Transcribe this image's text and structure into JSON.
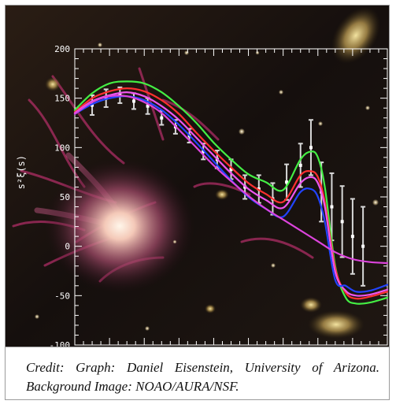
{
  "caption": {
    "text": "Credit: Graph: Daniel Eisenstein, University of Arizona. Background Image: NOAO/AURA/NSF."
  },
  "background": {
    "description": "galaxy field with pink nebula filaments"
  },
  "chart_data": {
    "type": "line",
    "title": "",
    "xlabel": "",
    "ylabel": "s²ξ(s)",
    "ylim": [
      -100,
      200
    ],
    "xlim": [
      0,
      9
    ],
    "grid": false,
    "y_ticks": [
      -100,
      -50,
      0,
      50,
      100,
      150,
      200
    ],
    "x_minor_ticks_count": 36,
    "series": [
      {
        "color": "#44ee44",
        "x": [
          0.0,
          0.5,
          1.0,
          1.5,
          2.0,
          2.5,
          3.0,
          3.5,
          4.0,
          4.5,
          5.0,
          5.5,
          6.0,
          6.5,
          6.8,
          7.0,
          7.2,
          7.5,
          7.8,
          8.1,
          8.5,
          9.0
        ],
        "values": [
          138,
          155,
          165,
          167,
          165,
          156,
          142,
          125,
          105,
          88,
          73,
          65,
          57,
          88,
          96,
          90,
          60,
          -20,
          -52,
          -58,
          -57,
          -52
        ]
      },
      {
        "color": "#ff3030",
        "x": [
          0.0,
          0.5,
          1.0,
          1.5,
          2.0,
          2.5,
          3.0,
          3.5,
          4.0,
          4.5,
          5.0,
          5.5,
          6.0,
          6.5,
          6.8,
          7.0,
          7.2,
          7.5,
          7.8,
          8.1,
          8.5,
          9.0
        ],
        "values": [
          136,
          150,
          157,
          160,
          157,
          148,
          134,
          115,
          97,
          80,
          64,
          53,
          45,
          72,
          76,
          70,
          45,
          -22,
          -47,
          -53,
          -51,
          -46
        ]
      },
      {
        "color": "#ee55ee",
        "x": [
          0.0,
          0.5,
          1.0,
          1.5,
          2.0,
          2.5,
          3.0,
          3.5,
          4.0,
          4.5,
          5.0,
          5.5,
          6.0,
          6.5,
          6.8,
          7.0,
          7.2,
          7.5,
          7.8,
          8.1,
          8.5,
          9.0
        ],
        "values": [
          135,
          147,
          153,
          156,
          152,
          142,
          128,
          110,
          92,
          74,
          58,
          47,
          39,
          64,
          70,
          64,
          40,
          -26,
          -45,
          -50,
          -49,
          -44
        ]
      },
      {
        "color": "#2244ff",
        "x": [
          0.0,
          0.5,
          1.0,
          1.5,
          2.0,
          2.5,
          3.0,
          3.5,
          4.0,
          4.5,
          5.0,
          5.5,
          6.0,
          6.5,
          6.8,
          7.0,
          7.2,
          7.5,
          7.8,
          8.1,
          8.5,
          9.0
        ],
        "values": [
          134,
          144,
          150,
          152,
          148,
          138,
          123,
          105,
          86,
          67,
          50,
          38,
          30,
          55,
          58,
          50,
          25,
          -34,
          -40,
          -46,
          -45,
          -39
        ]
      },
      {
        "color": "#dd44dd",
        "x": [
          0.0,
          0.5,
          1.0,
          1.5,
          2.0,
          2.5,
          3.0,
          3.5,
          4.0,
          4.5,
          5.0,
          5.5,
          6.0,
          6.5,
          7.0,
          7.5,
          8.0,
          8.5,
          9.0
        ],
        "values": [
          134,
          146,
          152,
          152,
          146,
          135,
          118,
          100,
          82,
          66,
          51,
          38,
          27,
          16,
          5,
          -6,
          -13,
          -16,
          -17
        ]
      }
    ],
    "error_points": [
      {
        "x": 0.5,
        "y": 143,
        "err": 10
      },
      {
        "x": 0.9,
        "y": 150,
        "err": 9
      },
      {
        "x": 1.3,
        "y": 153,
        "err": 8
      },
      {
        "x": 1.7,
        "y": 147,
        "err": 8
      },
      {
        "x": 2.1,
        "y": 142,
        "err": 8
      },
      {
        "x": 2.5,
        "y": 130,
        "err": 7
      },
      {
        "x": 2.9,
        "y": 121,
        "err": 7
      },
      {
        "x": 3.3,
        "y": 112,
        "err": 7
      },
      {
        "x": 3.7,
        "y": 96,
        "err": 8
      },
      {
        "x": 4.1,
        "y": 88,
        "err": 9
      },
      {
        "x": 4.5,
        "y": 78,
        "err": 10
      },
      {
        "x": 4.9,
        "y": 60,
        "err": 12
      },
      {
        "x": 5.3,
        "y": 58,
        "err": 14
      },
      {
        "x": 5.7,
        "y": 48,
        "err": 16
      },
      {
        "x": 6.1,
        "y": 65,
        "err": 18
      },
      {
        "x": 6.5,
        "y": 82,
        "err": 22
      },
      {
        "x": 6.8,
        "y": 100,
        "err": 28
      },
      {
        "x": 7.1,
        "y": 55,
        "err": 30
      },
      {
        "x": 7.4,
        "y": 40,
        "err": 34
      },
      {
        "x": 7.7,
        "y": 25,
        "err": 36
      },
      {
        "x": 8.0,
        "y": 10,
        "err": 38
      },
      {
        "x": 8.3,
        "y": 0,
        "err": 40
      }
    ]
  }
}
